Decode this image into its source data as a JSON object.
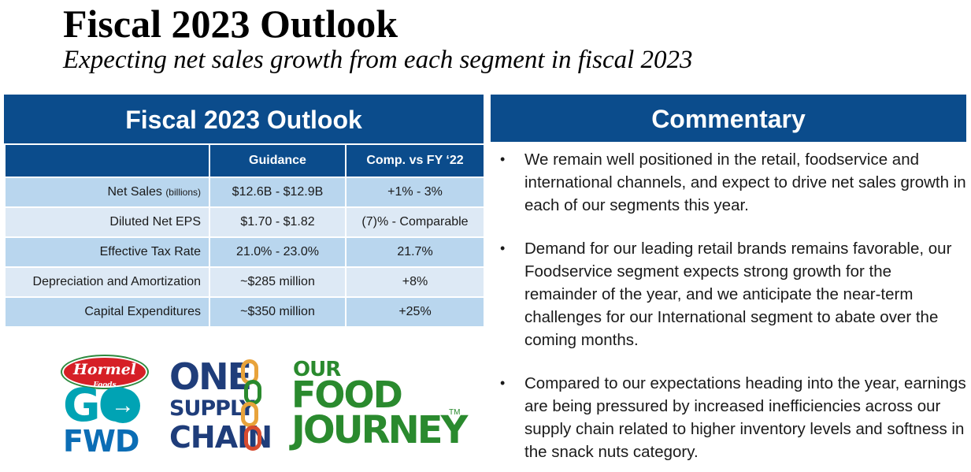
{
  "header": {
    "title": "Fiscal 2023 Outlook",
    "subtitle": "Expecting net sales growth from each segment in fiscal 2023"
  },
  "outlook_table": {
    "heading": "Fiscal 2023 Outlook",
    "columns": [
      "",
      "Guidance",
      "Comp. vs FY ‘22"
    ],
    "rows": [
      {
        "metric": "Net Sales",
        "unit": "(billions)",
        "guidance": "$12.6B - $12.9B",
        "comp": "+1% - 3%"
      },
      {
        "metric": "Diluted Net EPS",
        "unit": "",
        "guidance": "$1.70 - $1.82",
        "comp": "(7)% - Comparable"
      },
      {
        "metric": "Effective Tax Rate",
        "unit": "",
        "guidance": "21.0% - 23.0%",
        "comp": "21.7%"
      },
      {
        "metric": "Depreciation and Amortization",
        "unit": "",
        "guidance": "~$285 million",
        "comp": "+8%"
      },
      {
        "metric": "Capital Expenditures",
        "unit": "",
        "guidance": "~$350 million",
        "comp": "+25%"
      }
    ]
  },
  "commentary": {
    "heading": "Commentary",
    "bullet_glyph": "•",
    "bullets": [
      "We remain well positioned in the retail, foodservice and international channels, and expect to drive net sales growth in each of our segments this year.",
      "Demand for our leading retail brands remains favorable, our Foodservice segment expects strong growth for the remainder of the year, and we anticipate the near-term challenges for our International segment to abate over the coming months.",
      "Compared to our expectations heading into the year, earnings are being pressured by increased inefficiencies across our supply chain related to higher inventory levels and softness in the snack nuts category."
    ]
  },
  "logos": {
    "hormel": {
      "brand": "Hormel",
      "sub": "Foods",
      "line1": "GO",
      "arrow": "→",
      "line2": "FWD"
    },
    "supply_chain": {
      "line1": "ONE",
      "line2": "SUPPLY",
      "line3": "CHAIN"
    },
    "food_journey": {
      "line1": "OUR",
      "line2": "FOOD",
      "line3": "JOURNEY",
      "tm": "TM"
    }
  },
  "colors": {
    "header_blue": "#0b4c8c",
    "row_dark": "#b9d6ee",
    "row_light": "#dde9f5",
    "hormel_red": "#d61f26",
    "go_teal": "#00a3b4",
    "fwd_blue": "#0b6db5",
    "one_navy": "#1f3d7a",
    "journey_green": "#2a8a2e"
  }
}
